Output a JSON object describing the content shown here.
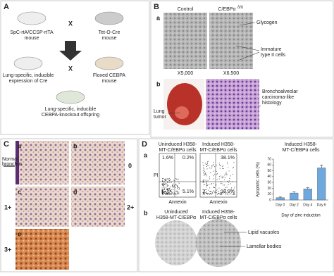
{
  "panel_a": {
    "letter": "A",
    "mouse1": [
      "SpC-rtA/CCSP-rtTA",
      "mouse"
    ],
    "mouse2": [
      "Tet-O-Cre",
      "mouse"
    ],
    "cross1": "X",
    "mouse3": [
      "Lung-specific, inducible",
      "expression of Cre"
    ],
    "cross2": "X",
    "mouse4": [
      "Floxed CEBPA",
      "mouse"
    ],
    "offspring": [
      "Lung-specific, inducible",
      "CEBPA-knockout offspring"
    ]
  },
  "panel_b": {
    "letter": "B",
    "sub_a": "a",
    "control": "Control",
    "mutant": "C/EBPα",
    "mutant_sup": "Δ/Δ",
    "glycogen": "Glycogen",
    "immature": [
      "Immature",
      "type II cells"
    ],
    "mag1": "X5,000",
    "mag2": "X6,500",
    "sub_b": "b",
    "tumor": [
      "Lung",
      "tumor"
    ],
    "histology": [
      "Bronchoalveolar",
      "carcinoma-like",
      "histology"
    ]
  },
  "panel_c": {
    "letter": "C",
    "subs": [
      "a",
      "b",
      "c",
      "d",
      "e"
    ],
    "bronchus": [
      "Normal",
      "bronchus"
    ],
    "scores": [
      "0",
      "1+",
      "2+",
      "3+"
    ]
  },
  "panel_d": {
    "letter": "D",
    "sub_a": "a",
    "uninduced": [
      "Uninduced H358-",
      "MT-C/EBPα cells"
    ],
    "induced": [
      "Induced H358-",
      "MT-C/EBPα cells"
    ],
    "y_label": "PI",
    "x_label": "Annexin",
    "plot1": [
      "1.6%",
      "0.2%",
      "5.1%"
    ],
    "plot2": [
      "38.1%",
      "18.9%"
    ],
    "sub_b": "b",
    "uninduced_b": [
      "Uninduced",
      "H358-MT-C/EBPα"
    ],
    "induced_b": [
      "Induced H358-",
      "MT-C/EBPα cells"
    ],
    "vacuoles": "Lipid vacuoles",
    "lamellar": "Lamellar bodies"
  },
  "chart_data": {
    "type": "bar",
    "title": [
      "Induced H358-",
      "MT-C/EBPα cells"
    ],
    "y_label": "Apoptotic cells (%)",
    "x_label": "Day of zinc induction",
    "categories": [
      "Day 0",
      "Day 2",
      "Day 4",
      "Day 6"
    ],
    "values": [
      4,
      12,
      19,
      55
    ],
    "errors": [
      1,
      2,
      2,
      5
    ],
    "color": "#6fa8dc",
    "ylim": [
      0,
      70
    ],
    "yticks": [
      0,
      10,
      20,
      30,
      40,
      50,
      60,
      70
    ]
  }
}
